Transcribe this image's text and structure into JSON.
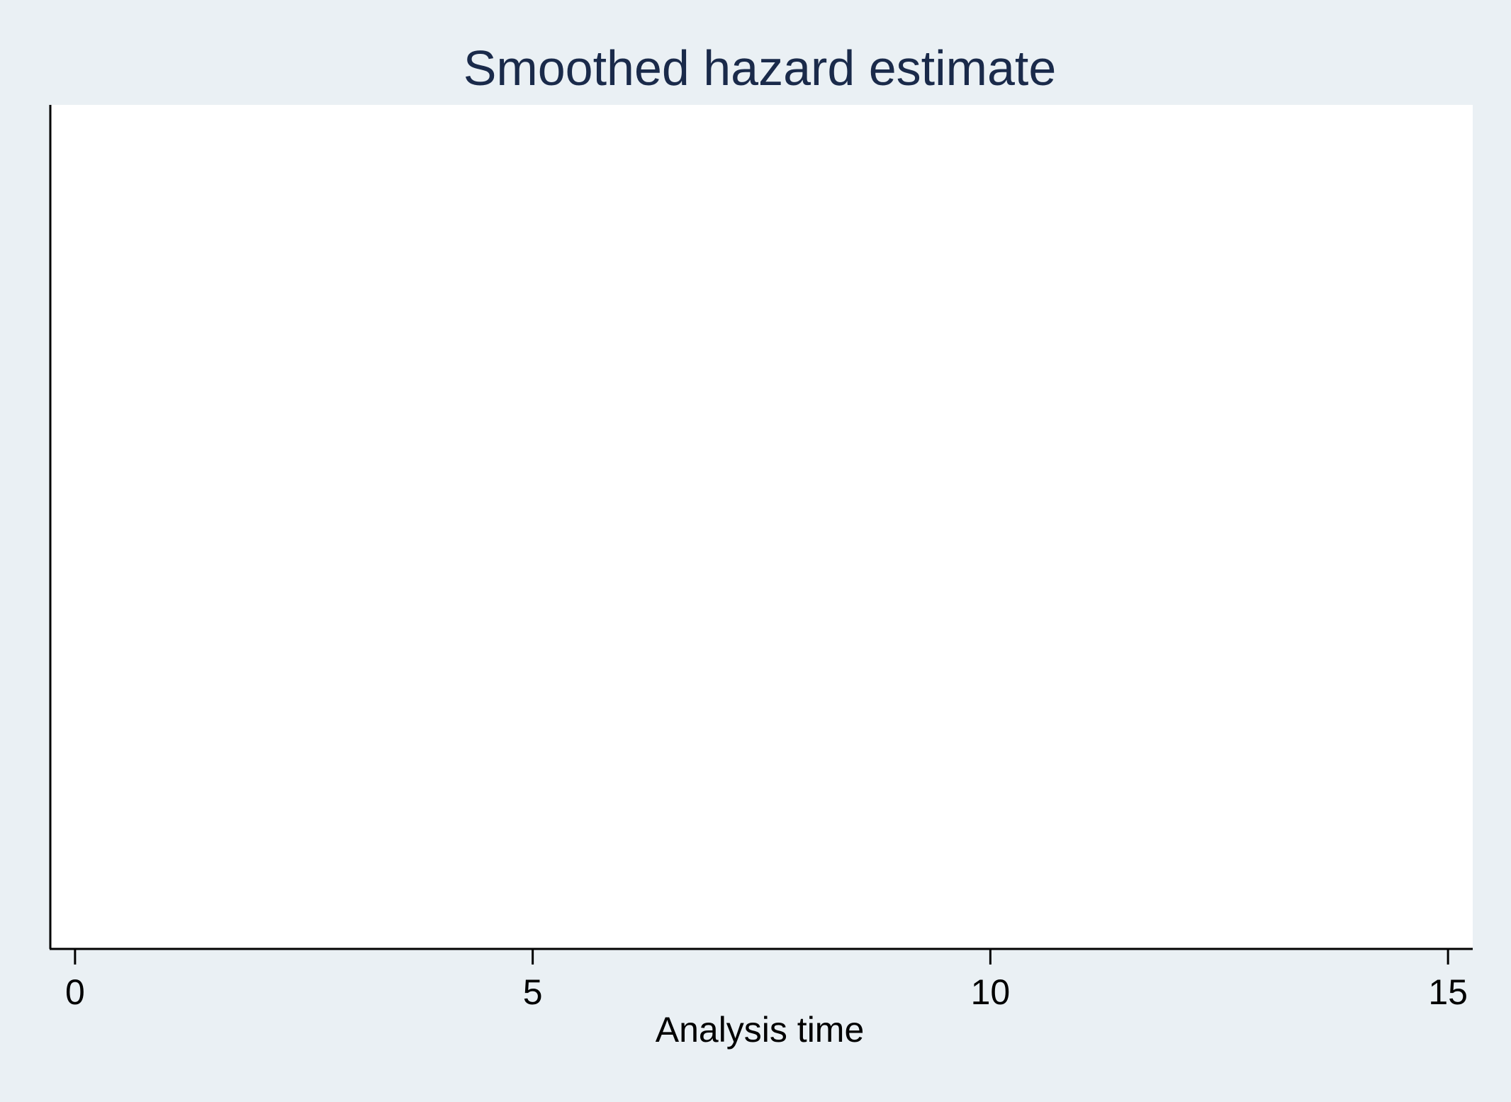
{
  "chart_data": {
    "type": "line",
    "title": "Smoothed hazard estimate",
    "xlabel": "Analysis time",
    "ylabel": "",
    "x_ticks": [
      0,
      5,
      10,
      15
    ],
    "x_tick_labels": [
      "0",
      "5",
      "10",
      "15"
    ],
    "xlim": [
      -0.27,
      15.27
    ],
    "series": [],
    "grid": false,
    "legend": "none"
  },
  "colors": {
    "background": "#eaf0f4",
    "plot_region": "#ffffff",
    "title": "#1a2a4a",
    "axis": "#000000"
  }
}
